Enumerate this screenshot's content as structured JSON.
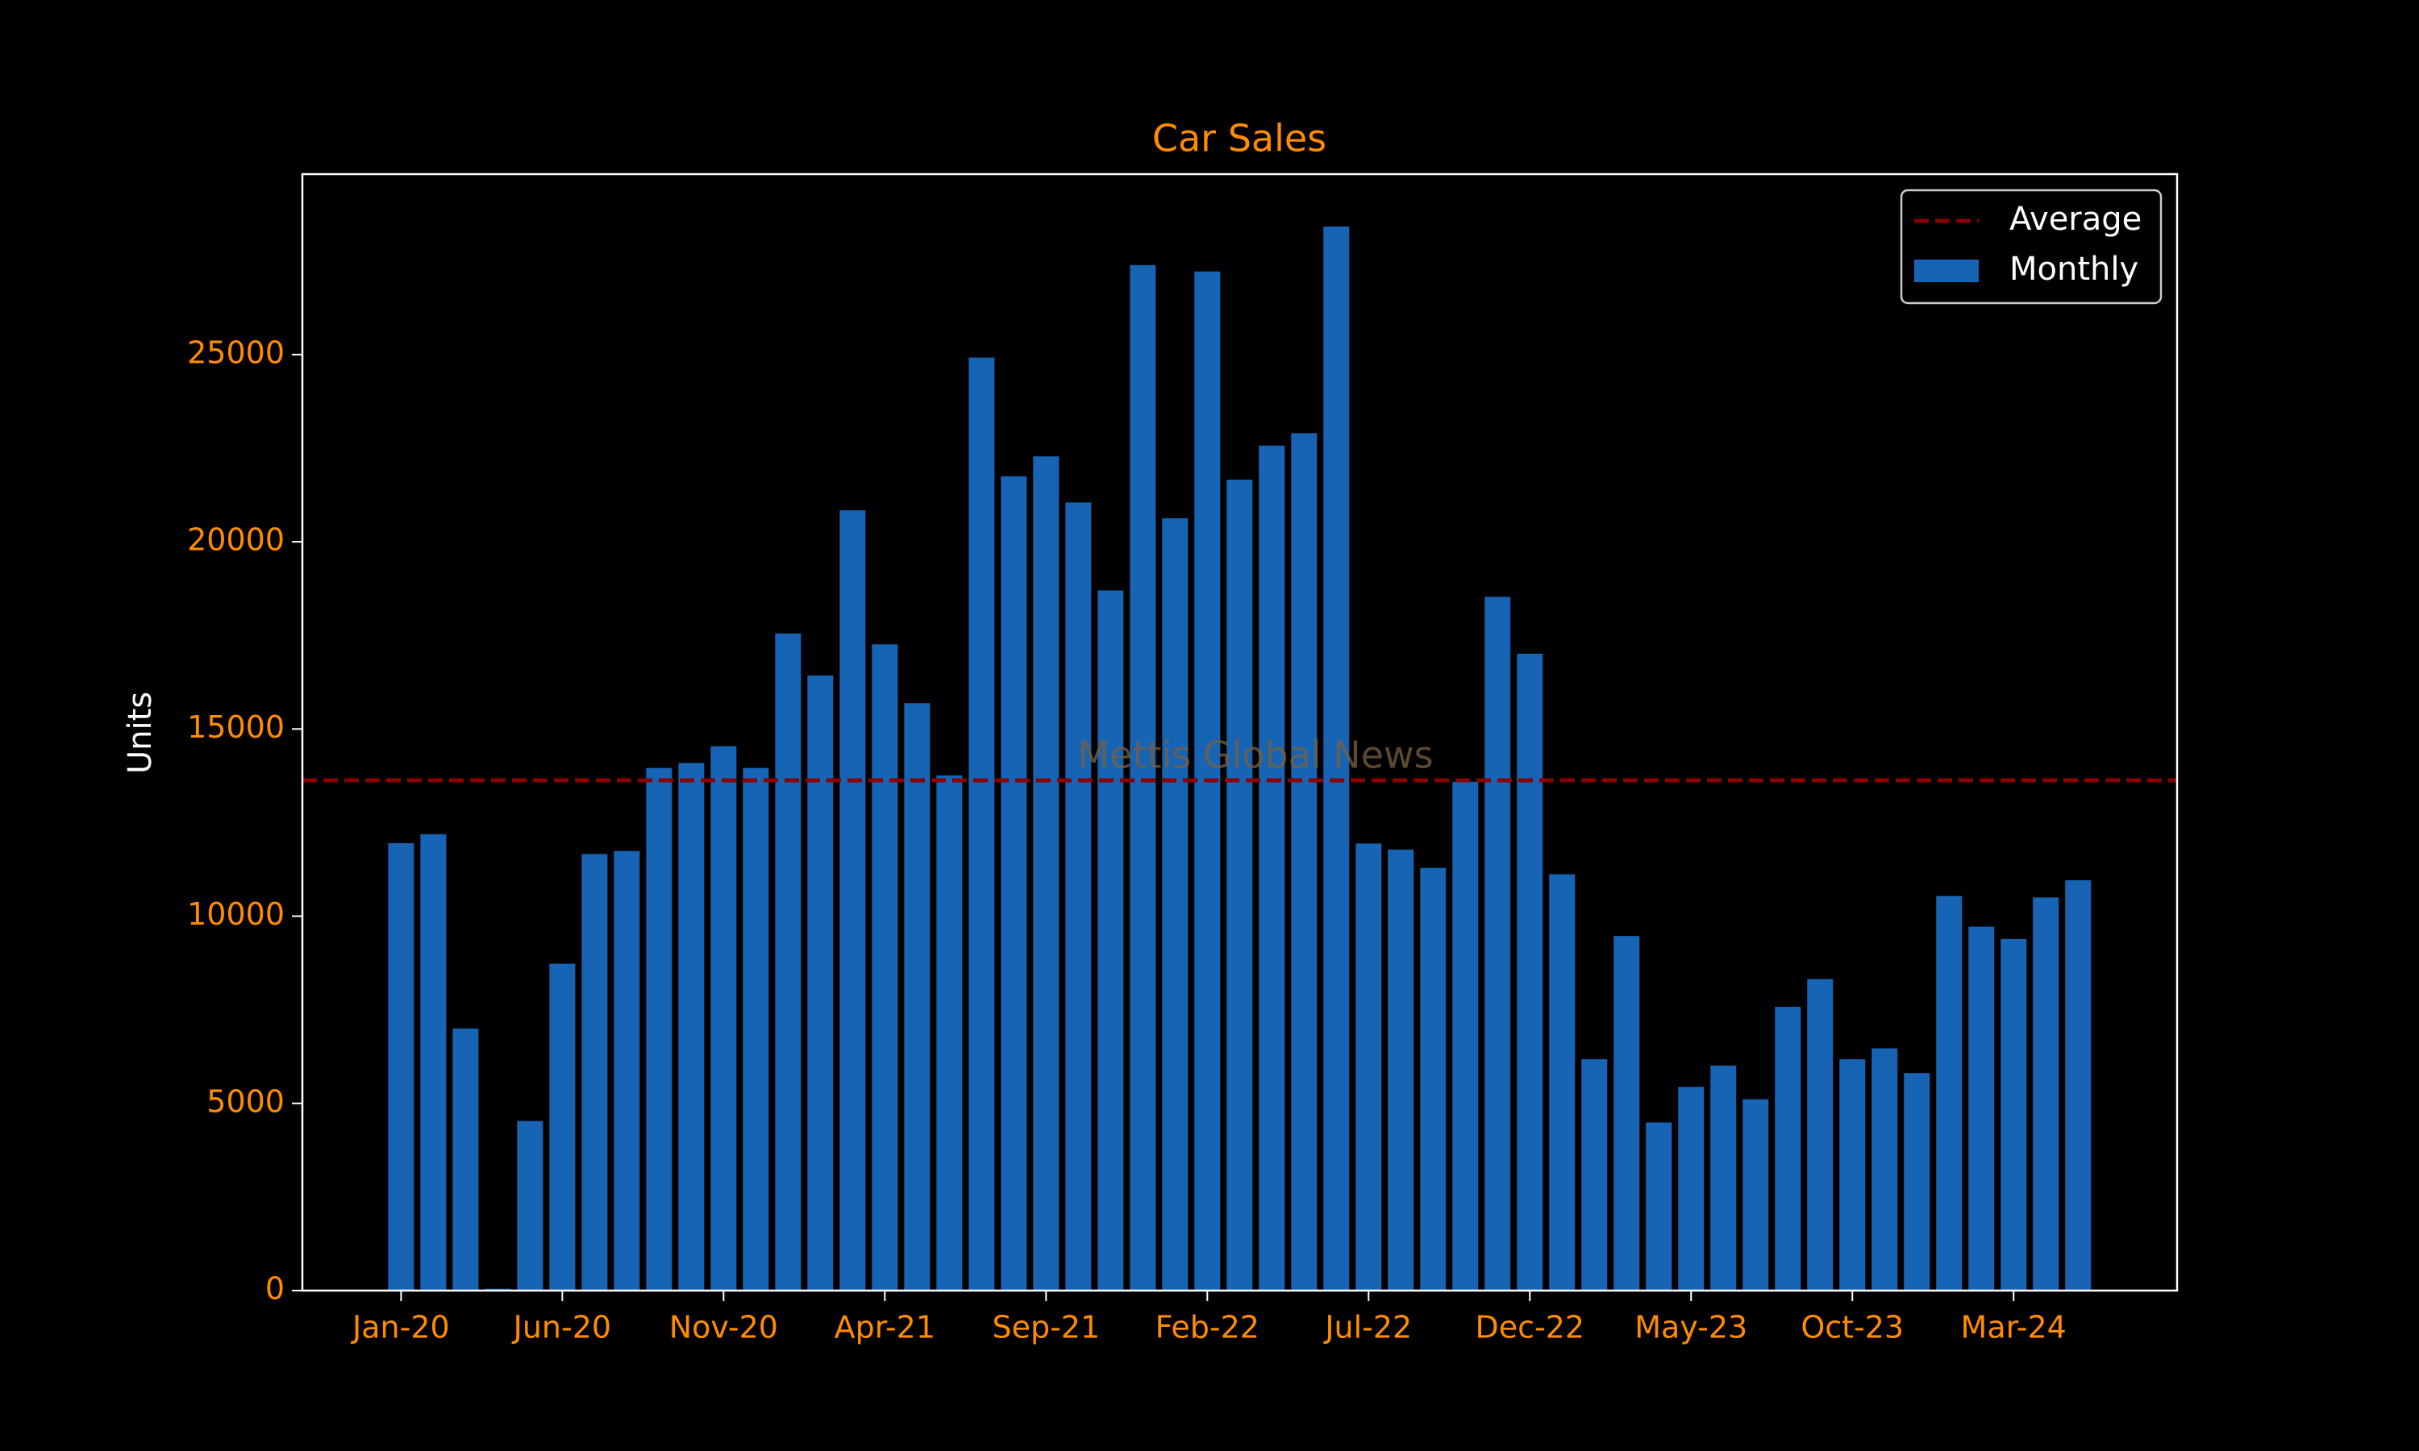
{
  "chart_data": {
    "type": "bar",
    "title": "Car Sales",
    "ylabel": "Units",
    "watermark": "Mettis Global News",
    "categories": [
      "Jan-20",
      null,
      null,
      null,
      null,
      "Jun-20",
      null,
      null,
      null,
      null,
      "Nov-20",
      null,
      null,
      null,
      null,
      "Apr-21",
      null,
      null,
      null,
      null,
      "Sep-21",
      null,
      null,
      null,
      null,
      "Feb-22",
      null,
      null,
      null,
      null,
      "Jul-22",
      null,
      null,
      null,
      null,
      "Dec-22",
      null,
      null,
      null,
      null,
      "May-23",
      null,
      null,
      null,
      null,
      "Oct-23",
      null,
      null,
      null,
      null,
      "Mar-24",
      null,
      null
    ],
    "series": [
      {
        "name": "Monthly",
        "color": "#1764b5",
        "values": [
          11950,
          12190,
          7000,
          50,
          4530,
          8730,
          11660,
          11740,
          13960,
          14090,
          14540,
          13960,
          17550,
          16430,
          20840,
          17260,
          15690,
          13760,
          24920,
          21750,
          22280,
          21050,
          18700,
          27390,
          20630,
          27220,
          21660,
          22570,
          22900,
          28420,
          11940,
          11780,
          11290,
          13590,
          18530,
          17010,
          11120,
          6180,
          9470,
          4490,
          5440,
          6010,
          5110,
          7580,
          8320,
          6180,
          6470,
          5810,
          10540,
          9720,
          9390,
          10500,
          10960
        ]
      }
    ],
    "average": {
      "name": "Average",
      "value": 13630,
      "color": "#8b0000"
    },
    "ylim": [
      0,
      29820
    ],
    "yticks": [
      0,
      5000,
      10000,
      15000,
      20000,
      25000
    ],
    "legend": "upper right"
  }
}
